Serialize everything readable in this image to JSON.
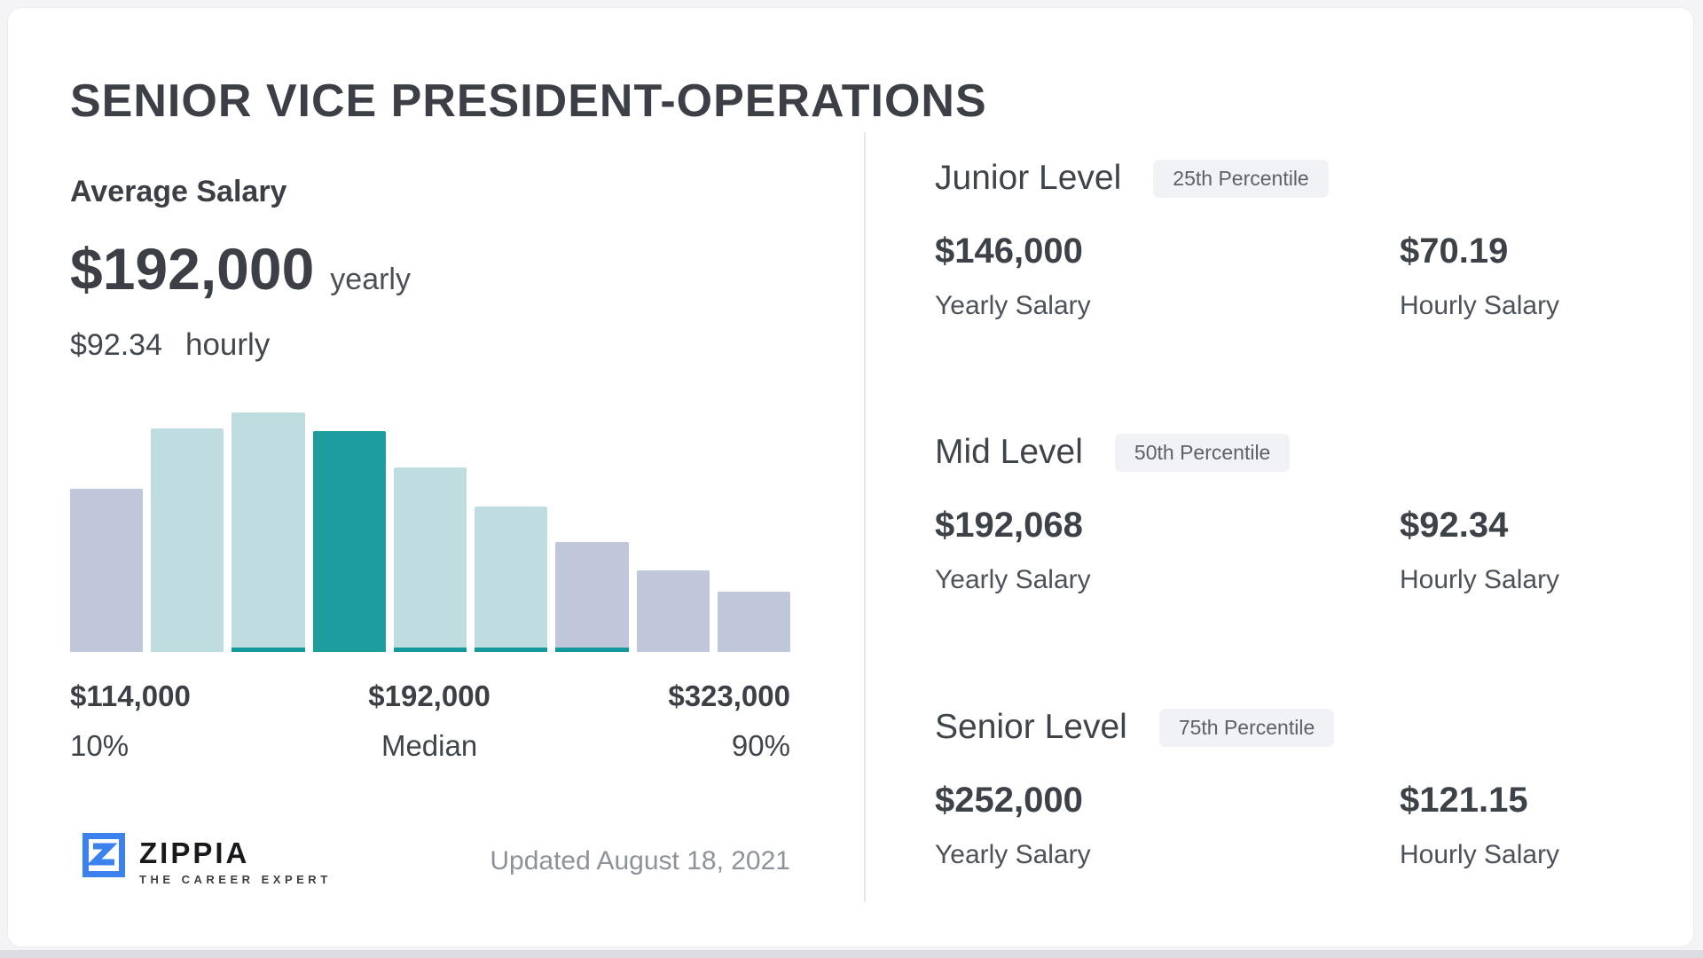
{
  "page_title": "SENIOR VICE PRESIDENT-OPERATIONS",
  "average_salary": {
    "label": "Average Salary",
    "yearly_value": "$192,000",
    "yearly_unit": "yearly",
    "hourly_value": "$92.34",
    "hourly_unit": "hourly"
  },
  "chart_data": {
    "type": "bar",
    "title": "Salary distribution histogram for Senior Vice President-Operations",
    "x_labels": [
      {
        "value": "$114,000",
        "caption": "10%"
      },
      {
        "value": "$192,000",
        "caption": "Median"
      },
      {
        "value": "$323,000",
        "caption": "90%"
      }
    ],
    "percentile_values": {
      "p10": 114000,
      "median": 192000,
      "p90": 323000
    },
    "bars": [
      {
        "relative_height": 182,
        "color_key": "lavender",
        "teal_underline": false
      },
      {
        "relative_height": 249,
        "color_key": "teal_light",
        "teal_underline": false
      },
      {
        "relative_height": 267,
        "color_key": "teal_light",
        "teal_underline": true
      },
      {
        "relative_height": 246,
        "color_key": "teal_dark",
        "teal_underline": false
      },
      {
        "relative_height": 206,
        "color_key": "teal_light",
        "teal_underline": true
      },
      {
        "relative_height": 162,
        "color_key": "teal_light",
        "teal_underline": true
      },
      {
        "relative_height": 123,
        "color_key": "lavender",
        "teal_underline": true
      },
      {
        "relative_height": 91,
        "color_key": "lavender",
        "teal_underline": false
      },
      {
        "relative_height": 67,
        "color_key": "lavender",
        "teal_underline": false
      }
    ],
    "max_height": 267,
    "colors": {
      "lavender": "#c1c7db",
      "teal_light": "#bfdce0",
      "teal_dark": "#1e9d9f",
      "teal_underline": "#15989b"
    },
    "y_axis": "hidden",
    "grid": false,
    "legend": false
  },
  "footer": {
    "brand": "ZIPPIA",
    "brand_tagline": "THE CAREER EXPERT",
    "updated": "Updated August 18, 2021"
  },
  "levels": [
    {
      "title": "Junior Level",
      "badge": "25th Percentile",
      "yearly_value": "$146,000",
      "yearly_label": "Yearly Salary",
      "hourly_value": "$70.19",
      "hourly_label": "Hourly Salary"
    },
    {
      "title": "Mid Level",
      "badge": "50th Percentile",
      "yearly_value": "$192,068",
      "yearly_label": "Yearly Salary",
      "hourly_value": "$92.34",
      "hourly_label": "Hourly Salary"
    },
    {
      "title": "Senior Level",
      "badge": "75th Percentile",
      "yearly_value": "$252,000",
      "yearly_label": "Yearly Salary",
      "hourly_value": "$121.15",
      "hourly_label": "Hourly Salary"
    }
  ]
}
